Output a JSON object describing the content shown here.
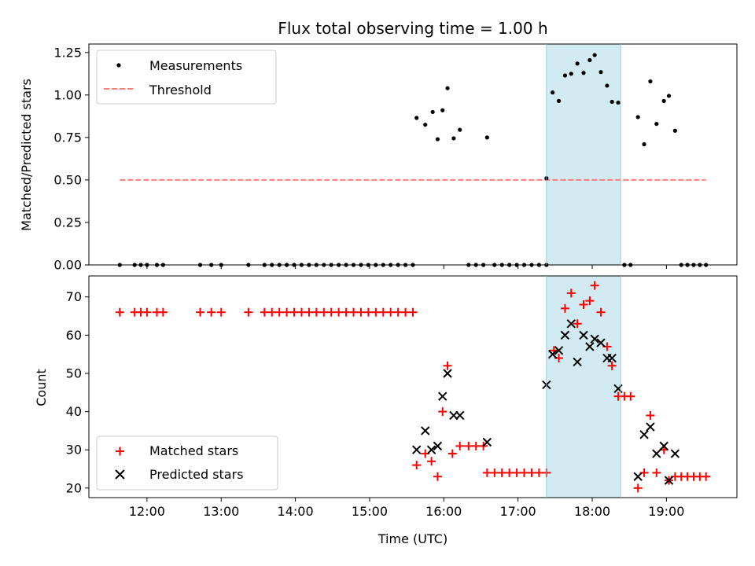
{
  "figure": {
    "title": "Flux total observing time = 1.00 h",
    "xlabel": "Time (UTC)",
    "highlight_band_color": "#add8e6",
    "colors": {
      "measurement": "#000000",
      "threshold": "#ff7f7f",
      "matched": "#ff0000",
      "predicted": "#000000"
    }
  },
  "chart_data": [
    {
      "type": "scatter",
      "ylabel": "Matched/Predicted stars",
      "xlim": [
        "11:13",
        "19:57"
      ],
      "ylim": [
        0,
        1.3
      ],
      "yticks": [
        0.0,
        0.25,
        0.5,
        0.75,
        1.0,
        1.25
      ],
      "ytick_labels": [
        "0.00",
        "0.25",
        "0.50",
        "0.75",
        "1.00",
        "1.25"
      ],
      "legend": {
        "position": "upper-left",
        "entries": [
          "Measurements",
          "Threshold"
        ]
      },
      "highlight_band": [
        "17:23",
        "18:23"
      ],
      "threshold": {
        "name": "Threshold",
        "value": 0.5,
        "x": [
          "11:38",
          "19:32"
        ]
      },
      "series": [
        {
          "name": "Measurements",
          "marker": "dot",
          "points": [
            [
              "11:38",
              0
            ],
            [
              "11:50",
              0
            ],
            [
              "11:55",
              0
            ],
            [
              "12:00",
              0
            ],
            [
              "12:08",
              0
            ],
            [
              "12:13",
              0
            ],
            [
              "12:43",
              0
            ],
            [
              "12:52",
              0
            ],
            [
              "13:00",
              0
            ],
            [
              "13:22",
              0
            ],
            [
              "13:35",
              0
            ],
            [
              "13:41",
              0
            ],
            [
              "13:47",
              0
            ],
            [
              "13:53",
              0
            ],
            [
              "13:59",
              0
            ],
            [
              "14:05",
              0
            ],
            [
              "14:11",
              0
            ],
            [
              "14:17",
              0
            ],
            [
              "14:23",
              0
            ],
            [
              "14:29",
              0
            ],
            [
              "14:35",
              0
            ],
            [
              "14:41",
              0
            ],
            [
              "14:47",
              0
            ],
            [
              "14:53",
              0
            ],
            [
              "14:59",
              0
            ],
            [
              "15:05",
              0
            ],
            [
              "15:11",
              0
            ],
            [
              "15:17",
              0
            ],
            [
              "15:23",
              0
            ],
            [
              "15:29",
              0
            ],
            [
              "15:35",
              0
            ],
            [
              "15:38",
              0.865
            ],
            [
              "15:45",
              0.825
            ],
            [
              "15:51",
              0.9
            ],
            [
              "15:55",
              0.74
            ],
            [
              "15:59",
              0.91
            ],
            [
              "16:03",
              1.04
            ],
            [
              "16:08",
              0.745
            ],
            [
              "16:13",
              0.795
            ],
            [
              "16:20",
              0
            ],
            [
              "16:26",
              0
            ],
            [
              "16:32",
              0
            ],
            [
              "16:35",
              0.75
            ],
            [
              "16:41",
              0
            ],
            [
              "16:47",
              0
            ],
            [
              "16:53",
              0
            ],
            [
              "16:59",
              0
            ],
            [
              "17:05",
              0
            ],
            [
              "17:11",
              0
            ],
            [
              "17:17",
              0
            ],
            [
              "17:23",
              0
            ],
            [
              "17:23",
              0.51
            ],
            [
              "17:28",
              1.015
            ],
            [
              "17:33",
              0.965
            ],
            [
              "17:38",
              1.115
            ],
            [
              "17:43",
              1.125
            ],
            [
              "17:48",
              1.185
            ],
            [
              "17:53",
              1.13
            ],
            [
              "17:58",
              1.205
            ],
            [
              "18:02",
              1.235
            ],
            [
              "18:07",
              1.135
            ],
            [
              "18:12",
              1.055
            ],
            [
              "18:16",
              0.96
            ],
            [
              "18:21",
              0.955
            ],
            [
              "18:26",
              0
            ],
            [
              "18:31",
              0
            ],
            [
              "18:37",
              0.87
            ],
            [
              "18:42",
              0.71
            ],
            [
              "18:47",
              1.08
            ],
            [
              "18:52",
              0.83
            ],
            [
              "18:58",
              0.965
            ],
            [
              "19:02",
              0.995
            ],
            [
              "19:07",
              0.79
            ],
            [
              "19:12",
              0
            ],
            [
              "19:17",
              0
            ],
            [
              "19:22",
              0
            ],
            [
              "19:27",
              0
            ],
            [
              "19:32",
              0
            ]
          ]
        }
      ]
    },
    {
      "type": "scatter",
      "ylabel": "Count",
      "xlim": [
        "11:13",
        "19:57"
      ],
      "ylim": [
        17.5,
        75.5
      ],
      "yticks": [
        20,
        30,
        40,
        50,
        60,
        70
      ],
      "ytick_labels": [
        "20",
        "30",
        "40",
        "50",
        "60",
        "70"
      ],
      "xticks": [
        "12:00",
        "13:00",
        "14:00",
        "15:00",
        "16:00",
        "17:00",
        "18:00",
        "19:00"
      ],
      "xtick_labels": [
        "12:00",
        "13:00",
        "14:00",
        "15:00",
        "16:00",
        "17:00",
        "18:00",
        "19:00"
      ],
      "legend": {
        "position": "lower-left",
        "entries": [
          "Matched stars",
          "Predicted stars"
        ]
      },
      "highlight_band": [
        "17:23",
        "18:23"
      ],
      "series": [
        {
          "name": "Matched stars",
          "marker": "plus",
          "points": [
            [
              "11:38",
              66
            ],
            [
              "11:50",
              66
            ],
            [
              "11:55",
              66
            ],
            [
              "12:00",
              66
            ],
            [
              "12:08",
              66
            ],
            [
              "12:13",
              66
            ],
            [
              "12:43",
              66
            ],
            [
              "12:52",
              66
            ],
            [
              "13:00",
              66
            ],
            [
              "13:22",
              66
            ],
            [
              "13:35",
              66
            ],
            [
              "13:41",
              66
            ],
            [
              "13:47",
              66
            ],
            [
              "13:53",
              66
            ],
            [
              "13:59",
              66
            ],
            [
              "14:05",
              66
            ],
            [
              "14:11",
              66
            ],
            [
              "14:17",
              66
            ],
            [
              "14:23",
              66
            ],
            [
              "14:29",
              66
            ],
            [
              "14:35",
              66
            ],
            [
              "14:41",
              66
            ],
            [
              "14:47",
              66
            ],
            [
              "14:53",
              66
            ],
            [
              "14:59",
              66
            ],
            [
              "15:05",
              66
            ],
            [
              "15:11",
              66
            ],
            [
              "15:17",
              66
            ],
            [
              "15:23",
              66
            ],
            [
              "15:29",
              66
            ],
            [
              "15:35",
              66
            ],
            [
              "15:38",
              26
            ],
            [
              "15:45",
              29
            ],
            [
              "15:50",
              27
            ],
            [
              "15:55",
              23
            ],
            [
              "15:59",
              40
            ],
            [
              "16:03",
              52
            ],
            [
              "16:07",
              29
            ],
            [
              "16:13",
              31
            ],
            [
              "16:20",
              31
            ],
            [
              "16:26",
              31
            ],
            [
              "16:32",
              31
            ],
            [
              "16:35",
              24
            ],
            [
              "16:41",
              24
            ],
            [
              "16:47",
              24
            ],
            [
              "16:53",
              24
            ],
            [
              "16:59",
              24
            ],
            [
              "17:05",
              24
            ],
            [
              "17:11",
              24
            ],
            [
              "17:17",
              24
            ],
            [
              "17:23",
              24
            ],
            [
              "17:29",
              56
            ],
            [
              "17:33",
              54
            ],
            [
              "17:38",
              67
            ],
            [
              "17:43",
              71
            ],
            [
              "17:48",
              63
            ],
            [
              "17:53",
              68
            ],
            [
              "17:58",
              69
            ],
            [
              "18:02",
              73
            ],
            [
              "18:07",
              66
            ],
            [
              "18:12",
              57
            ],
            [
              "18:16",
              52
            ],
            [
              "18:21",
              44
            ],
            [
              "18:26",
              44
            ],
            [
              "18:31",
              44
            ],
            [
              "18:37",
              20
            ],
            [
              "18:42",
              24
            ],
            [
              "18:47",
              39
            ],
            [
              "18:52",
              24
            ],
            [
              "18:58",
              30
            ],
            [
              "19:02",
              22
            ],
            [
              "19:07",
              23
            ],
            [
              "19:12",
              23
            ],
            [
              "19:17",
              23
            ],
            [
              "19:22",
              23
            ],
            [
              "19:27",
              23
            ],
            [
              "19:32",
              23
            ]
          ]
        },
        {
          "name": "Predicted stars",
          "marker": "x",
          "points": [
            [
              "15:38",
              30
            ],
            [
              "15:45",
              35
            ],
            [
              "15:50",
              30
            ],
            [
              "15:55",
              31
            ],
            [
              "15:59",
              44
            ],
            [
              "16:03",
              50
            ],
            [
              "16:08",
              39
            ],
            [
              "16:13",
              39
            ],
            [
              "16:35",
              32
            ],
            [
              "17:23",
              47
            ],
            [
              "17:28",
              55
            ],
            [
              "17:33",
              56
            ],
            [
              "17:38",
              60
            ],
            [
              "17:43",
              63
            ],
            [
              "17:48",
              53
            ],
            [
              "17:53",
              60
            ],
            [
              "17:58",
              57
            ],
            [
              "18:02",
              59
            ],
            [
              "18:07",
              58
            ],
            [
              "18:12",
              54
            ],
            [
              "18:16",
              54
            ],
            [
              "18:21",
              46
            ],
            [
              "18:37",
              23
            ],
            [
              "18:42",
              34
            ],
            [
              "18:47",
              36
            ],
            [
              "18:52",
              29
            ],
            [
              "18:58",
              31
            ],
            [
              "19:02",
              22
            ],
            [
              "19:07",
              29
            ]
          ]
        }
      ]
    }
  ]
}
